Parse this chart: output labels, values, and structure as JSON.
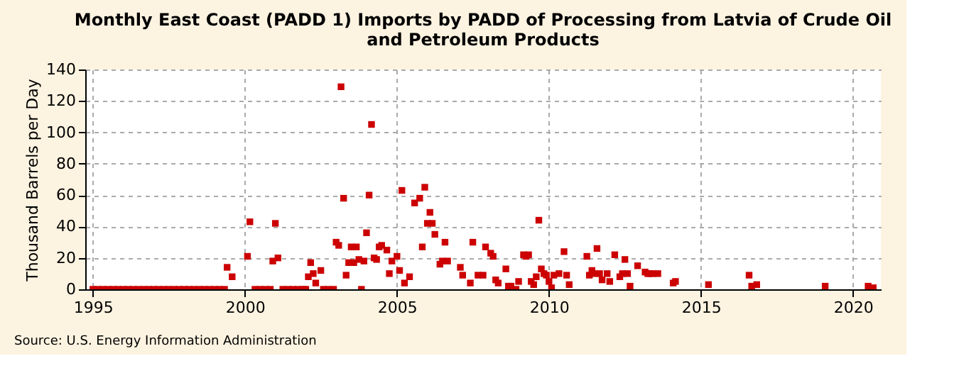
{
  "chart_data": {
    "type": "scatter",
    "title": "Monthly East Coast (PADD 1) Imports by PADD of Processing from Latvia of Crude Oil and Petroleum Products",
    "ylabel": "Thousand Barrels per Day",
    "annotations": [
      "Source: U.S. Energy Information Administration"
    ],
    "x": [
      "1995-01",
      "1995-03",
      "1995-05",
      "1995-07",
      "1995-09",
      "1995-11",
      "1996-01",
      "1996-03",
      "1996-05",
      "1996-07",
      "1996-09",
      "1996-11",
      "1997-01",
      "1997-03",
      "1997-05",
      "1997-07",
      "1997-09",
      "1997-11",
      "1998-01",
      "1998-03",
      "1998-05",
      "1998-07",
      "1998-09",
      "1998-11",
      "1999-01",
      "1999-03",
      "1999-05",
      "1999-06",
      "1999-08",
      "2000-02",
      "2000-03",
      "2000-05",
      "2000-07",
      "2000-09",
      "2000-11",
      "2000-12",
      "2001-01",
      "2001-02",
      "2001-04",
      "2001-06",
      "2001-08",
      "2001-10",
      "2001-12",
      "2002-01",
      "2002-02",
      "2002-03",
      "2002-04",
      "2002-05",
      "2002-07",
      "2002-08",
      "2002-10",
      "2002-12",
      "2003-01",
      "2003-02",
      "2003-03",
      "2003-04",
      "2003-05",
      "2003-06",
      "2003-07",
      "2003-08",
      "2003-09",
      "2003-10",
      "2003-11",
      "2003-12",
      "2004-01",
      "2004-02",
      "2004-03",
      "2004-04",
      "2004-05",
      "2004-06",
      "2004-07",
      "2004-09",
      "2004-10",
      "2004-11",
      "2005-01",
      "2005-02",
      "2005-03",
      "2005-04",
      "2005-06",
      "2005-08",
      "2005-10",
      "2005-11",
      "2005-12",
      "2006-01",
      "2006-02",
      "2006-03",
      "2006-04",
      "2006-06",
      "2006-07",
      "2006-08",
      "2006-09",
      "2007-02",
      "2007-03",
      "2007-06",
      "2007-07",
      "2007-09",
      "2007-11",
      "2007-12",
      "2008-02",
      "2008-03",
      "2008-04",
      "2008-05",
      "2008-08",
      "2008-09",
      "2008-10",
      "2008-12",
      "2009-01",
      "2009-03",
      "2009-04",
      "2009-05",
      "2009-06",
      "2009-07",
      "2009-08",
      "2009-09",
      "2009-10",
      "2009-11",
      "2009-12",
      "2010-01",
      "2010-02",
      "2010-03",
      "2010-05",
      "2010-07",
      "2010-08",
      "2010-09",
      "2011-04",
      "2011-05",
      "2011-06",
      "2011-07",
      "2011-08",
      "2011-09",
      "2011-10",
      "2011-12",
      "2012-01",
      "2012-03",
      "2012-05",
      "2012-06",
      "2012-07",
      "2012-08",
      "2012-09",
      "2012-12",
      "2013-03",
      "2013-04",
      "2013-05",
      "2013-06",
      "2013-08",
      "2014-02",
      "2014-03",
      "2015-04",
      "2016-08",
      "2016-09",
      "2016-11",
      "2019-02",
      "2020-07",
      "2020-09"
    ],
    "series": [
      {
        "color": "#cc0000",
        "values": [
          0,
          0,
          0,
          0,
          0,
          0,
          0,
          0,
          0,
          0,
          0,
          0,
          0,
          0,
          0,
          0,
          0,
          0,
          0,
          0,
          0,
          0,
          0,
          0,
          0,
          0,
          0,
          14,
          8,
          21,
          43,
          0,
          0,
          0,
          0,
          18,
          42,
          20,
          0,
          0,
          0,
          0,
          0,
          0,
          8,
          17,
          10,
          4,
          12,
          0,
          0,
          0,
          30,
          28,
          129,
          58,
          9,
          17,
          27,
          17,
          27,
          19,
          0,
          18,
          36,
          60,
          105,
          20,
          19,
          27,
          28,
          25,
          10,
          18,
          21,
          12,
          63,
          4,
          8,
          55,
          58,
          27,
          65,
          42,
          49,
          42,
          35,
          16,
          18,
          30,
          18,
          14,
          9,
          4,
          30,
          9,
          9,
          27,
          23,
          21,
          6,
          4,
          13,
          2,
          2,
          0,
          5,
          22,
          21,
          22,
          5,
          3,
          8,
          44,
          13,
          10,
          9,
          5,
          1,
          9,
          10,
          24,
          9,
          3,
          21,
          9,
          12,
          10,
          26,
          10,
          6,
          10,
          5,
          22,
          8,
          10,
          19,
          10,
          2,
          15,
          11,
          10,
          10,
          10,
          10,
          4,
          5,
          3,
          9,
          2,
          3,
          2,
          2,
          1
        ]
      }
    ],
    "xlim": [
      "1994-10",
      "2020-12"
    ],
    "xticks": [
      "1995",
      "2000",
      "2005",
      "2010",
      "2015",
      "2020"
    ],
    "ylim": [
      0,
      140
    ],
    "yticks": [
      0,
      20,
      40,
      60,
      80,
      100,
      120,
      140
    ],
    "grid": true,
    "marker": "square"
  }
}
